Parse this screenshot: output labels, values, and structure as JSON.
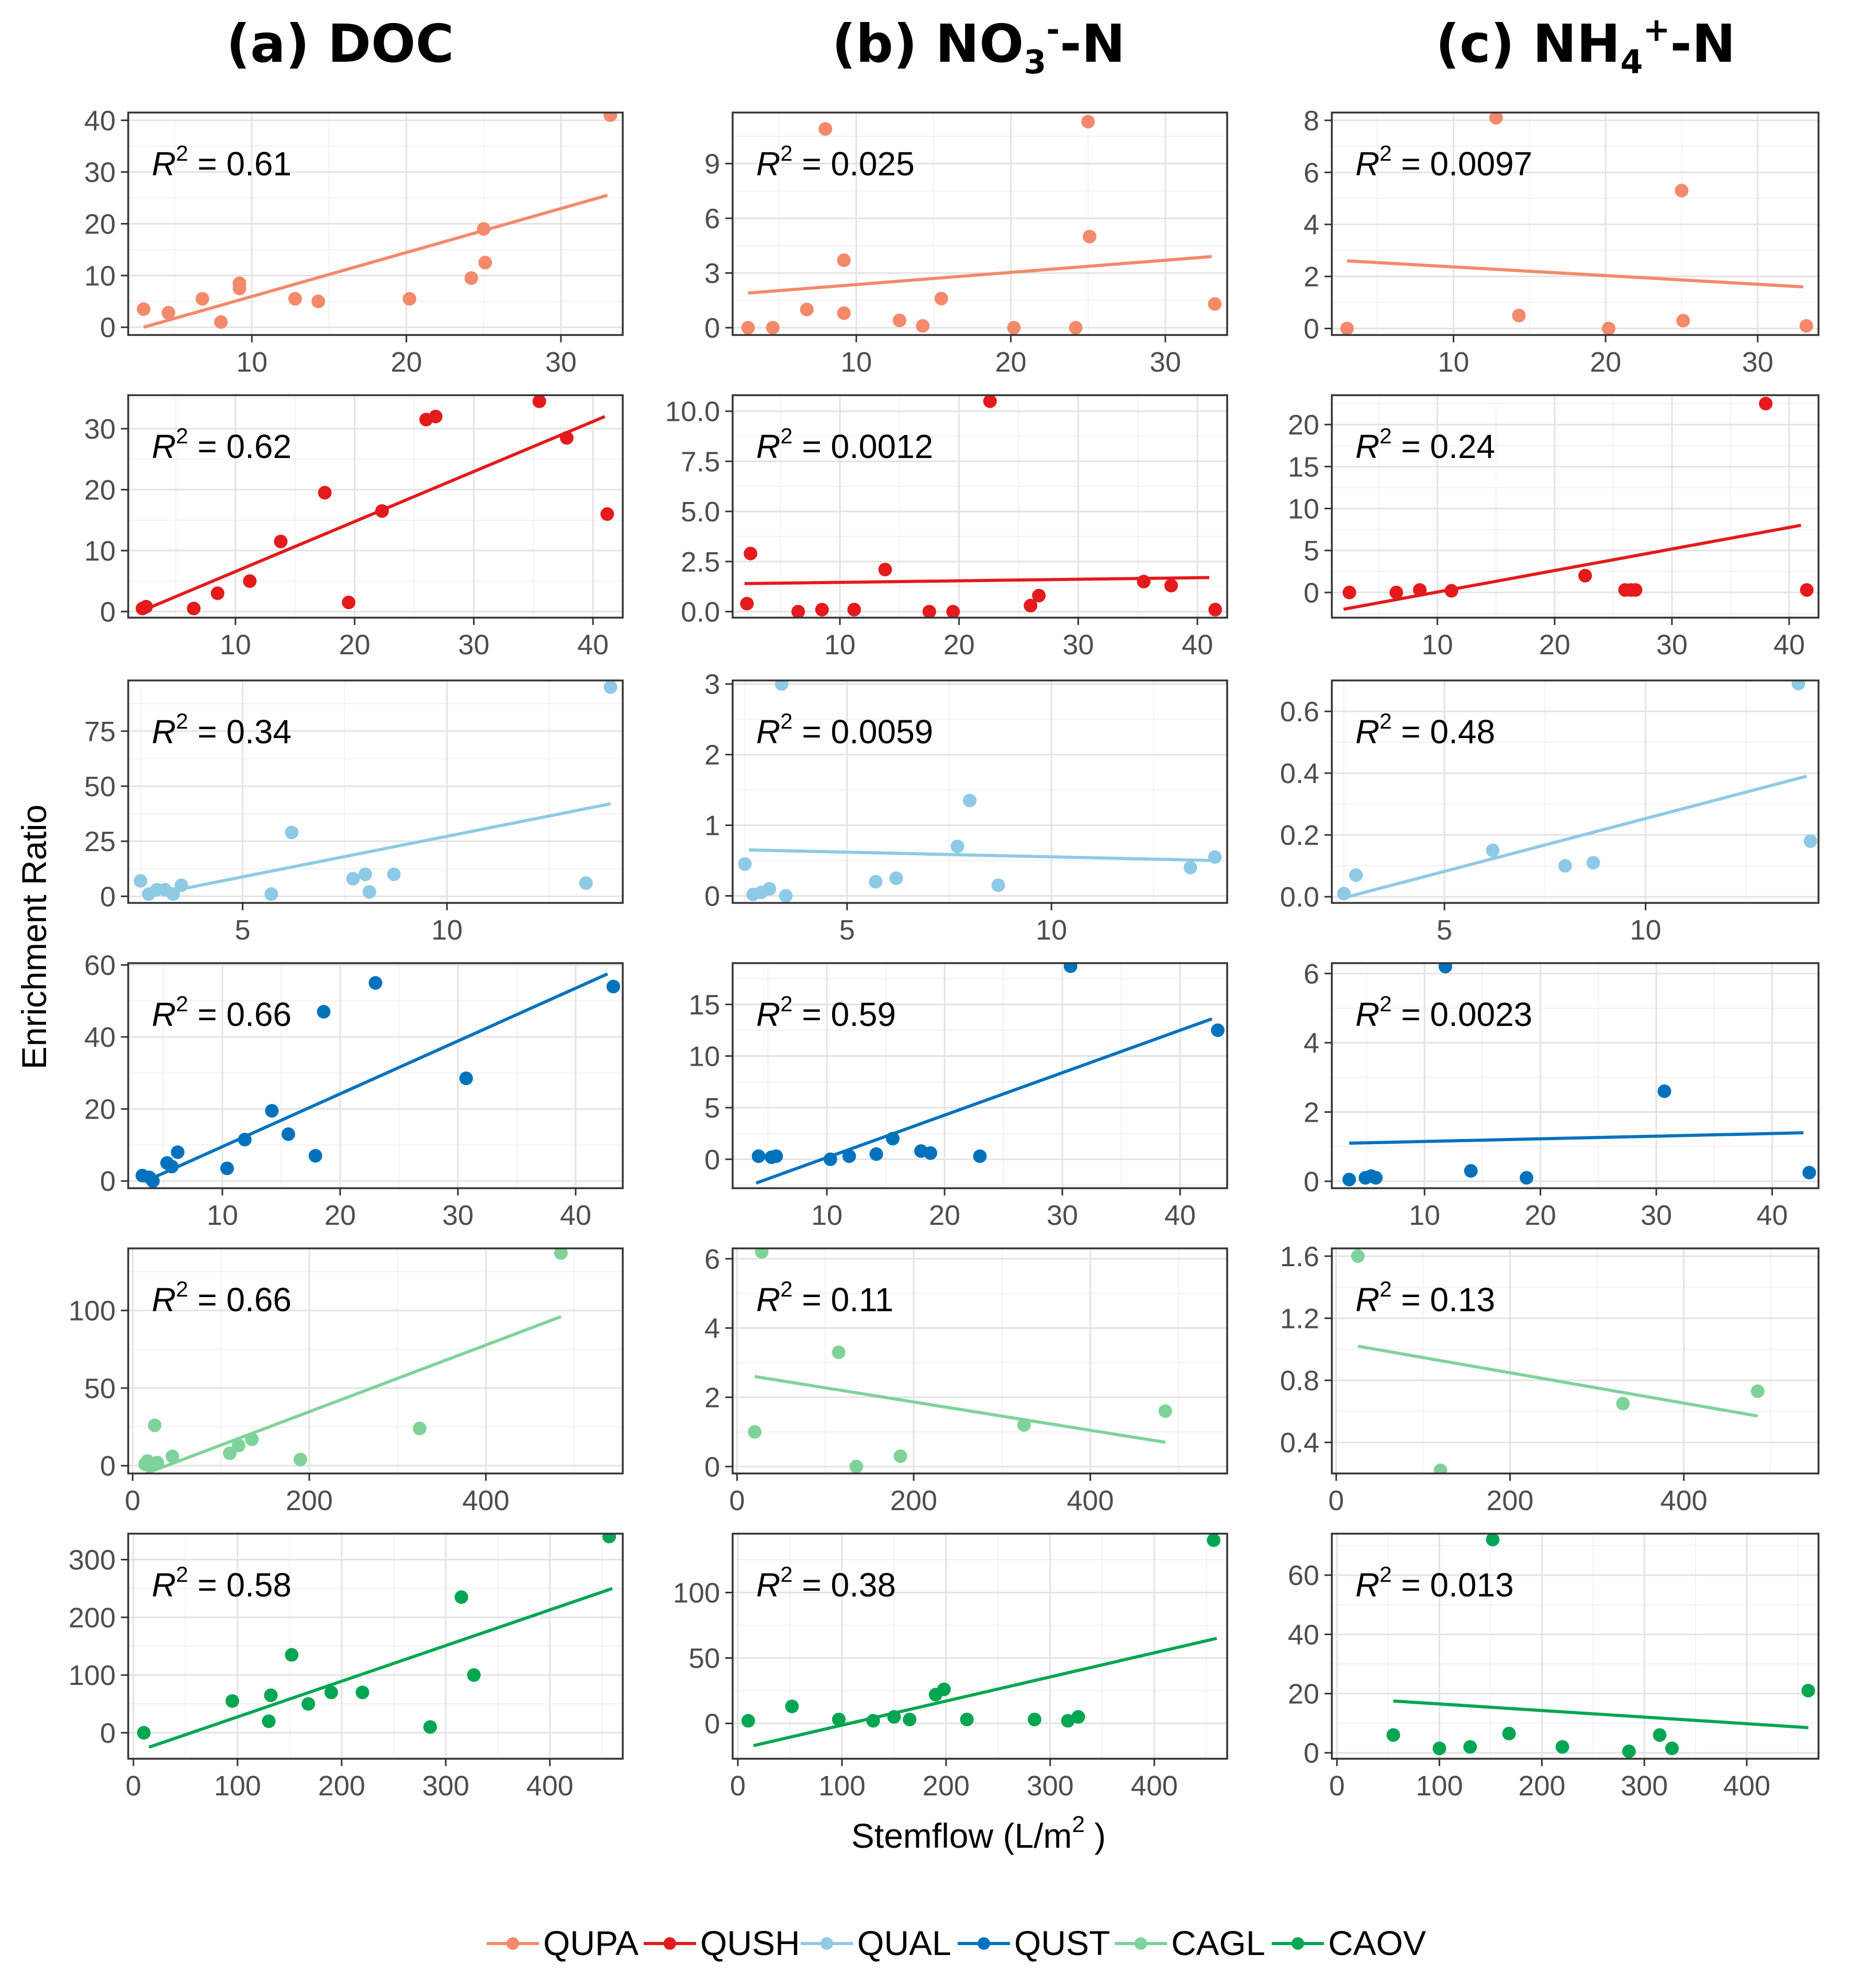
{
  "titles": [
    {
      "prefix": "(a) DOC",
      "main": "",
      "sup": "",
      "suffix": ""
    },
    {
      "prefix": "(b) ",
      "main": "NO",
      "sub": "3",
      "sup": "-",
      "suffix": "-N"
    },
    {
      "prefix": "(c) ",
      "main": "NH",
      "sub": "4",
      "sup": "+",
      "suffix": "-N"
    }
  ],
  "ylabel": "Enrichment Ratio",
  "xlabel": {
    "text": "Stemflow (L/m",
    "sup": "2",
    "close": " )"
  },
  "colors": {
    "QUPA": "#f4896b",
    "QUSH": "#e41a1c",
    "QUAL": "#8ecae6",
    "QUST": "#0072bd",
    "CAGL": "#7fd39a",
    "CAOV": "#00a651"
  },
  "legend": [
    {
      "label": "QUPA",
      "color": "#f4896b"
    },
    {
      "label": "QUSH",
      "color": "#e41a1c"
    },
    {
      "label": "QUAL",
      "color": "#8ecae6"
    },
    {
      "label": "QUST",
      "color": "#0072bd"
    },
    {
      "label": "CAGL",
      "color": "#7fd39a"
    },
    {
      "label": "CAOV",
      "color": "#00a651"
    }
  ],
  "chart_data": [
    {
      "type": "scatter",
      "species": "QUPA",
      "variable": "DOC",
      "r2": "0.61",
      "xlim": [
        2,
        34
      ],
      "ylim": [
        -1.5,
        41.5
      ],
      "xticks": [
        10,
        20,
        30
      ],
      "yticks": [
        0,
        10,
        20,
        30,
        40
      ],
      "fit": [
        [
          3,
          0
        ],
        [
          33,
          25.5
        ]
      ],
      "points": [
        [
          3,
          3.5
        ],
        [
          4.6,
          2.8
        ],
        [
          6.8,
          5.5
        ],
        [
          8,
          1
        ],
        [
          9.2,
          7.5
        ],
        [
          9.2,
          8.5
        ],
        [
          12.8,
          5.5
        ],
        [
          14.3,
          5
        ],
        [
          20.2,
          5.5
        ],
        [
          24.2,
          9.5
        ],
        [
          25,
          19
        ],
        [
          25.1,
          12.5
        ],
        [
          33.2,
          41
        ]
      ]
    },
    {
      "type": "scatter",
      "species": "QUPA",
      "variable": "NO3-N",
      "r2": "0.025",
      "xlim": [
        2,
        34
      ],
      "ylim": [
        -0.4,
        11.8
      ],
      "xticks": [
        10,
        20,
        30
      ],
      "yticks": [
        0,
        3,
        6,
        9
      ],
      "fit": [
        [
          3,
          1.9
        ],
        [
          33,
          3.9
        ]
      ],
      "points": [
        [
          3,
          0
        ],
        [
          4.6,
          0
        ],
        [
          6.8,
          1
        ],
        [
          8,
          10.9
        ],
        [
          9.2,
          0.8
        ],
        [
          9.2,
          3.7
        ],
        [
          12.8,
          0.4
        ],
        [
          14.3,
          0.1
        ],
        [
          15.5,
          1.6
        ],
        [
          20.2,
          0
        ],
        [
          24.2,
          0
        ],
        [
          25,
          11.3
        ],
        [
          25.1,
          5
        ],
        [
          33.2,
          1.3
        ]
      ]
    },
    {
      "type": "scatter",
      "species": "QUPA",
      "variable": "NH4-N",
      "r2": "0.0097",
      "xlim": [
        2,
        34
      ],
      "ylim": [
        -0.25,
        8.3
      ],
      "xticks": [
        10,
        20,
        30
      ],
      "yticks": [
        0,
        2,
        4,
        6,
        8
      ],
      "fit": [
        [
          3,
          2.6
        ],
        [
          33,
          1.6
        ]
      ],
      "points": [
        [
          3,
          0
        ],
        [
          12.8,
          8.1
        ],
        [
          14.3,
          0.5
        ],
        [
          20.2,
          0
        ],
        [
          25,
          5.3
        ],
        [
          25.1,
          0.3
        ],
        [
          33.2,
          0.1
        ]
      ]
    },
    {
      "type": "scatter",
      "species": "QUSH",
      "variable": "DOC",
      "r2": "0.62",
      "xlim": [
        1,
        42.5
      ],
      "ylim": [
        -1,
        35.5
      ],
      "xticks": [
        10,
        20,
        30,
        40
      ],
      "yticks": [
        0,
        10,
        20,
        30
      ],
      "fit": [
        [
          2,
          0
        ],
        [
          41,
          32
        ]
      ],
      "points": [
        [
          2.2,
          0.5
        ],
        [
          2.5,
          0.8
        ],
        [
          6.5,
          0.5
        ],
        [
          8.5,
          3
        ],
        [
          11.2,
          5
        ],
        [
          13.8,
          11.5
        ],
        [
          17.5,
          19.5
        ],
        [
          19.5,
          1.5
        ],
        [
          22.3,
          16.5
        ],
        [
          26,
          31.5
        ],
        [
          26.8,
          32
        ],
        [
          35.5,
          34.5
        ],
        [
          37.8,
          28.5
        ],
        [
          41.2,
          16
        ]
      ]
    },
    {
      "type": "scatter",
      "species": "QUSH",
      "variable": "NO3-N",
      "r2": "0.0012",
      "xlim": [
        1,
        42.5
      ],
      "ylim": [
        -0.3,
        10.8
      ],
      "xticks": [
        10,
        20,
        30,
        40
      ],
      "yticks": [
        0.0,
        2.5,
        5.0,
        7.5,
        10.0
      ],
      "yfmt": 1,
      "fit": [
        [
          2,
          1.4
        ],
        [
          41,
          1.7
        ]
      ],
      "points": [
        [
          2.2,
          0.4
        ],
        [
          2.5,
          2.9
        ],
        [
          6.5,
          0
        ],
        [
          8.5,
          0.1
        ],
        [
          11.2,
          0.1
        ],
        [
          13.8,
          2.1
        ],
        [
          17.5,
          0
        ],
        [
          19.5,
          0
        ],
        [
          22.6,
          10.5
        ],
        [
          26,
          0.3
        ],
        [
          26.7,
          0.8
        ],
        [
          35.5,
          1.5
        ],
        [
          37.8,
          1.3
        ],
        [
          41.5,
          0.1
        ]
      ]
    },
    {
      "type": "scatter",
      "species": "QUSH",
      "variable": "NH4-N",
      "r2": "0.24",
      "xlim": [
        1,
        42.5
      ],
      "ylim": [
        -3,
        23.5
      ],
      "xticks": [
        10,
        20,
        30,
        40
      ],
      "yticks": [
        0,
        5,
        10,
        15,
        20
      ],
      "fit": [
        [
          2,
          -2
        ],
        [
          41,
          8
        ]
      ],
      "points": [
        [
          2.5,
          0
        ],
        [
          6.5,
          0
        ],
        [
          8.5,
          0.3
        ],
        [
          11.2,
          0.2
        ],
        [
          22.6,
          2
        ],
        [
          26,
          0.3
        ],
        [
          26.5,
          0.3
        ],
        [
          26.9,
          0.3
        ],
        [
          38,
          22.5
        ],
        [
          41.5,
          0.3
        ]
      ]
    },
    {
      "type": "scatter",
      "species": "QUAL",
      "variable": "DOC",
      "r2": "0.34",
      "xlim": [
        2.2,
        14.3
      ],
      "ylim": [
        -3,
        98
      ],
      "xticks": [
        5,
        10
      ],
      "yticks": [
        0,
        25,
        50,
        75
      ],
      "fit": [
        [
          2.6,
          0
        ],
        [
          14,
          42
        ]
      ],
      "points": [
        [
          2.5,
          7
        ],
        [
          2.7,
          1
        ],
        [
          2.9,
          3
        ],
        [
          3.1,
          3
        ],
        [
          3.3,
          1
        ],
        [
          3.5,
          5
        ],
        [
          5.7,
          1
        ],
        [
          6.2,
          29
        ],
        [
          7.7,
          8
        ],
        [
          8,
          10
        ],
        [
          8.1,
          2
        ],
        [
          8.7,
          10
        ],
        [
          13.4,
          6
        ],
        [
          14,
          95
        ]
      ]
    },
    {
      "type": "scatter",
      "species": "QUAL",
      "variable": "NO3-N",
      "r2": "0.0059",
      "xlim": [
        2.2,
        14.3
      ],
      "ylim": [
        -0.1,
        3.05
      ],
      "xticks": [
        5,
        10
      ],
      "yticks": [
        0,
        1,
        2,
        3
      ],
      "fit": [
        [
          2.6,
          0.65
        ],
        [
          14,
          0.5
        ]
      ],
      "points": [
        [
          2.5,
          0.45
        ],
        [
          2.7,
          0.02
        ],
        [
          2.9,
          0.05
        ],
        [
          3.1,
          0.1
        ],
        [
          3.4,
          3
        ],
        [
          3.5,
          0
        ],
        [
          5.7,
          0.2
        ],
        [
          6.2,
          0.25
        ],
        [
          7.7,
          0.7
        ],
        [
          8,
          1.35
        ],
        [
          8.7,
          0.15
        ],
        [
          13.4,
          0.4
        ],
        [
          14,
          0.55
        ]
      ]
    },
    {
      "type": "scatter",
      "species": "QUAL",
      "variable": "NH4-N",
      "r2": "0.48",
      "xlim": [
        2.2,
        14.3
      ],
      "ylim": [
        -0.02,
        0.7
      ],
      "xticks": [
        5,
        10
      ],
      "yticks": [
        0.0,
        0.2,
        0.4,
        0.6
      ],
      "yfmt": 1,
      "fit": [
        [
          2.6,
          0
        ],
        [
          14,
          0.39
        ]
      ],
      "points": [
        [
          2.5,
          0.01
        ],
        [
          2.8,
          0.07
        ],
        [
          6.2,
          0.15
        ],
        [
          8,
          0.1
        ],
        [
          8.7,
          0.11
        ],
        [
          13.8,
          0.69
        ],
        [
          14.1,
          0.18
        ]
      ]
    },
    {
      "type": "scatter",
      "species": "QUST",
      "variable": "DOC",
      "r2": "0.66",
      "xlim": [
        2,
        44
      ],
      "ylim": [
        -2,
        60.5
      ],
      "xticks": [
        10,
        20,
        30,
        40
      ],
      "yticks": [
        0,
        20,
        40,
        60
      ],
      "fit": [
        [
          3.5,
          0
        ],
        [
          42.7,
          57.5
        ]
      ],
      "points": [
        [
          3.2,
          1.5
        ],
        [
          3.8,
          1
        ],
        [
          4.1,
          0
        ],
        [
          5.3,
          5
        ],
        [
          5.7,
          4
        ],
        [
          6.2,
          8
        ],
        [
          10.4,
          3.5
        ],
        [
          11.9,
          11.5
        ],
        [
          14.2,
          19.5
        ],
        [
          15.6,
          13
        ],
        [
          17.9,
          7
        ],
        [
          18.6,
          47
        ],
        [
          23,
          55
        ],
        [
          30.7,
          28.5
        ],
        [
          43.2,
          54
        ]
      ]
    },
    {
      "type": "scatter",
      "species": "QUST",
      "variable": "NO3-N",
      "r2": "0.59",
      "xlim": [
        2,
        44
      ],
      "ylim": [
        -2.8,
        19
      ],
      "xticks": [
        10,
        20,
        30,
        40
      ],
      "yticks": [
        0,
        5,
        10,
        15
      ],
      "fit": [
        [
          4,
          -2.3
        ],
        [
          42.7,
          13.6
        ]
      ],
      "points": [
        [
          4.2,
          0.3
        ],
        [
          5.3,
          0.2
        ],
        [
          5.7,
          0.3
        ],
        [
          10.3,
          0
        ],
        [
          11.9,
          0.3
        ],
        [
          14.2,
          0.5
        ],
        [
          15.6,
          2
        ],
        [
          18,
          0.8
        ],
        [
          18.8,
          0.6
        ],
        [
          23,
          0.3
        ],
        [
          30.7,
          18.7
        ],
        [
          43.2,
          12.5
        ]
      ]
    },
    {
      "type": "scatter",
      "species": "QUST",
      "variable": "NH4-N",
      "r2": "0.0023",
      "xlim": [
        2,
        44
      ],
      "ylim": [
        -0.2,
        6.3
      ],
      "xticks": [
        10,
        20,
        30,
        40
      ],
      "yticks": [
        0,
        2,
        4,
        6
      ],
      "fit": [
        [
          3.5,
          1.1
        ],
        [
          42.7,
          1.4
        ]
      ],
      "points": [
        [
          3.5,
          0.05
        ],
        [
          4.9,
          0.1
        ],
        [
          5.4,
          0.15
        ],
        [
          5.8,
          0.1
        ],
        [
          11.8,
          6.2
        ],
        [
          14,
          0.3
        ],
        [
          18.8,
          0.1
        ],
        [
          30.7,
          2.6
        ],
        [
          43.2,
          0.25
        ]
      ]
    },
    {
      "type": "scatter",
      "species": "CAGL",
      "variable": "DOC",
      "r2": "0.66",
      "xlim": [
        -5,
        555
      ],
      "ylim": [
        -5,
        140
      ],
      "xticks": [
        0,
        200,
        400
      ],
      "yticks": [
        0,
        50,
        100
      ],
      "fit": [
        [
          15,
          -5
        ],
        [
          485,
          96
        ]
      ],
      "points": [
        [
          14,
          1
        ],
        [
          17,
          3
        ],
        [
          20,
          0
        ],
        [
          25,
          26
        ],
        [
          28,
          2
        ],
        [
          45,
          6
        ],
        [
          110,
          8
        ],
        [
          120,
          13
        ],
        [
          135,
          17
        ],
        [
          190,
          4
        ],
        [
          325,
          24
        ],
        [
          485,
          137
        ]
      ]
    },
    {
      "type": "scatter",
      "species": "CAGL",
      "variable": "NO3-N",
      "r2": "0.11",
      "xlim": [
        -5,
        555
      ],
      "ylim": [
        -0.2,
        6.3
      ],
      "xticks": [
        0,
        200,
        400
      ],
      "yticks": [
        0,
        2,
        4,
        6
      ],
      "fit": [
        [
          20,
          2.6
        ],
        [
          485,
          0.7
        ]
      ],
      "points": [
        [
          20,
          1
        ],
        [
          28,
          6.2
        ],
        [
          115,
          3.3
        ],
        [
          135,
          0
        ],
        [
          185,
          0.3
        ],
        [
          325,
          1.2
        ],
        [
          485,
          1.6
        ]
      ]
    },
    {
      "type": "scatter",
      "species": "CAGL",
      "variable": "NH4-N",
      "r2": "0.13",
      "xlim": [
        -5,
        555
      ],
      "ylim": [
        0.2,
        1.65
      ],
      "xticks": [
        0,
        200,
        400
      ],
      "yticks": [
        0.4,
        0.8,
        1.2,
        1.6
      ],
      "yfmt": 1,
      "fit": [
        [
          25,
          1.02
        ],
        [
          485,
          0.57
        ]
      ],
      "points": [
        [
          25,
          1.6
        ],
        [
          120,
          0.22
        ],
        [
          330,
          0.65
        ],
        [
          485,
          0.73
        ]
      ]
    },
    {
      "type": "scatter",
      "species": "CAOV",
      "variable": "DOC",
      "r2": "0.58",
      "xlim": [
        -5,
        470
      ],
      "ylim": [
        -45,
        345
      ],
      "xticks": [
        0,
        100,
        200,
        300,
        400
      ],
      "yticks": [
        0,
        100,
        200,
        300
      ],
      "fit": [
        [
          15,
          -25
        ],
        [
          460,
          250
        ]
      ],
      "points": [
        [
          10,
          0
        ],
        [
          95,
          55
        ],
        [
          130,
          20
        ],
        [
          132,
          65
        ],
        [
          152,
          135
        ],
        [
          168,
          50
        ],
        [
          190,
          70
        ],
        [
          220,
          70
        ],
        [
          285,
          10
        ],
        [
          315,
          235
        ],
        [
          327,
          100
        ],
        [
          457,
          340
        ]
      ]
    },
    {
      "type": "scatter",
      "species": "CAOV",
      "variable": "NO3-N",
      "r2": "0.38",
      "xlim": [
        -5,
        470
      ],
      "ylim": [
        -27,
        145
      ],
      "xticks": [
        0,
        100,
        200,
        300,
        400
      ],
      "yticks": [
        0,
        50,
        100
      ],
      "fit": [
        [
          15,
          -17
        ],
        [
          460,
          65
        ]
      ],
      "points": [
        [
          10,
          2
        ],
        [
          52,
          13
        ],
        [
          97,
          3
        ],
        [
          130,
          2
        ],
        [
          150,
          5
        ],
        [
          165,
          3
        ],
        [
          190,
          22
        ],
        [
          198,
          26
        ],
        [
          220,
          3
        ],
        [
          285,
          3
        ],
        [
          317,
          2
        ],
        [
          327,
          5
        ],
        [
          457,
          140
        ]
      ]
    },
    {
      "type": "scatter",
      "species": "CAOV",
      "variable": "NH4-N",
      "r2": "0.013",
      "xlim": [
        -5,
        470
      ],
      "ylim": [
        -2,
        74
      ],
      "xticks": [
        0,
        100,
        200,
        300,
        400
      ],
      "yticks": [
        0,
        20,
        40,
        60
      ],
      "fit": [
        [
          55,
          17.5
        ],
        [
          460,
          8.5
        ]
      ],
      "points": [
        [
          55,
          6
        ],
        [
          100,
          1.5
        ],
        [
          130,
          2
        ],
        [
          152,
          72
        ],
        [
          168,
          6.5
        ],
        [
          220,
          2
        ],
        [
          285,
          0.5
        ],
        [
          315,
          6
        ],
        [
          327,
          1.5
        ],
        [
          460,
          21
        ]
      ]
    }
  ]
}
